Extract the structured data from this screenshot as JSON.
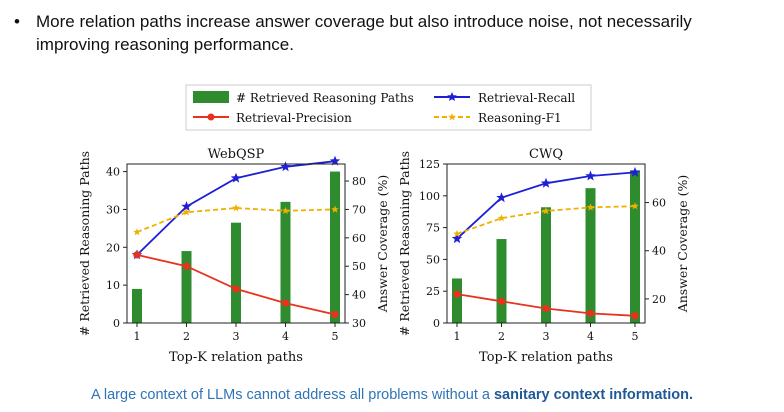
{
  "bullet": {
    "marker": "•",
    "text": "More relation paths increase answer coverage but also introduce noise, not necessarily improving reasoning performance."
  },
  "footer": {
    "text": "A large context of LLMs cannot address all problems without a ",
    "emphasis": "sanitary context information."
  },
  "legend": {
    "bars": "# Retrieved Reasoning Paths",
    "recall": "Retrieval-Recall",
    "precision": "Retrieval-Precision",
    "f1": "Reasoning-F1"
  },
  "colors": {
    "bars": "#2e8b2e",
    "recall": "#1f1fd6",
    "precision": "#e8321e",
    "f1": "#f0b000",
    "footer": "#2f74b5"
  },
  "chart_data": [
    {
      "type": "bar",
      "title": "WebQSP",
      "xlabel": "Top-K relation paths",
      "ylabel": "# Retrieved Reasoning Paths",
      "y2label": "Answer Coverage (%)",
      "categories": [
        "1",
        "2",
        "3",
        "4",
        "5"
      ],
      "ylim": [
        0,
        42
      ],
      "yticks": [
        0,
        10,
        20,
        30,
        40
      ],
      "y2lim": [
        30,
        86
      ],
      "y2ticks": [
        30,
        40,
        50,
        60,
        70,
        80
      ],
      "bars": [
        9,
        19,
        26.5,
        32,
        40
      ],
      "series": [
        {
          "name": "Retrieval-Recall",
          "axis": "right",
          "values": [
            54,
            71,
            81,
            85,
            87
          ]
        },
        {
          "name": "Retrieval-Precision",
          "axis": "right",
          "values": [
            54,
            50,
            42,
            37,
            33
          ]
        },
        {
          "name": "Reasoning-F1",
          "axis": "right",
          "values": [
            62,
            69,
            70.5,
            69.5,
            70
          ]
        }
      ]
    },
    {
      "type": "bar",
      "title": "CWQ",
      "xlabel": "Top-K relation paths",
      "ylabel": "# Retrieved Reasoning Paths",
      "y2label": "Answer Coverage (%)",
      "categories": [
        "1",
        "2",
        "3",
        "4",
        "5"
      ],
      "ylim": [
        0,
        125
      ],
      "yticks": [
        0,
        25,
        50,
        75,
        100,
        125
      ],
      "y2lim": [
        10,
        76
      ],
      "y2ticks": [
        20,
        40,
        60
      ],
      "bars": [
        35,
        66,
        91,
        106,
        120
      ],
      "series": [
        {
          "name": "Retrieval-Recall",
          "axis": "right",
          "values": [
            45,
            62,
            68,
            71,
            72.5
          ]
        },
        {
          "name": "Retrieval-Precision",
          "axis": "right",
          "values": [
            22,
            19,
            16,
            14,
            13
          ]
        },
        {
          "name": "Reasoning-F1",
          "axis": "right",
          "values": [
            47,
            53.5,
            56.5,
            58,
            58.5
          ]
        }
      ]
    }
  ]
}
